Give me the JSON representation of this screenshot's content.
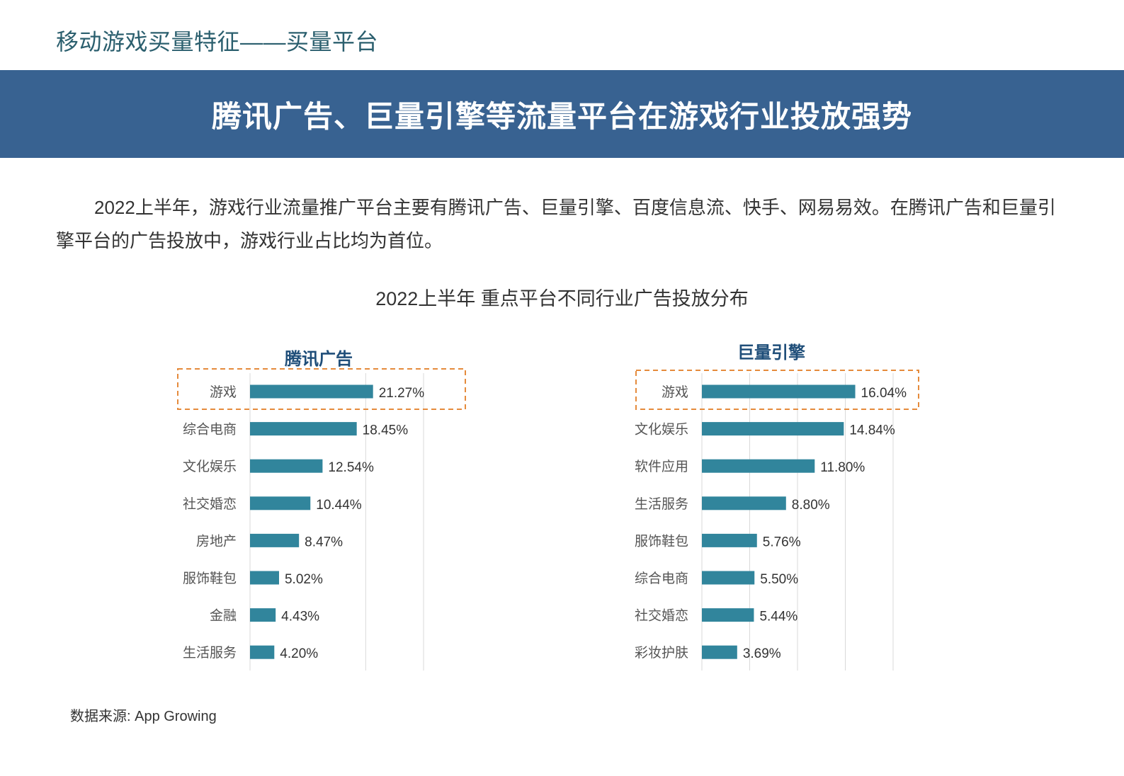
{
  "header": {
    "section_title": "移动游戏买量特征——买量平台",
    "banner_title": "腾讯广告、巨量引擎等流量平台在游戏行业投放强势"
  },
  "intro": {
    "text": "2022上半年，游戏行业流量推广平台主要有腾讯广告、巨量引擎、百度信息流、快手、网易易效。在腾讯广告和巨量引擎平台的广告投放中，游戏行业占比均为首位。"
  },
  "figure": {
    "title": "2022上半年 重点平台不同行业广告投放分布"
  },
  "source": {
    "text": "数据来源: App Growing"
  },
  "colors": {
    "banner": "#386291",
    "bar": "#31859c",
    "highlight": "#e58b3c",
    "chart_title": "#1f4e79"
  },
  "chart_data": [
    {
      "type": "bar",
      "orientation": "horizontal",
      "title": "腾讯广告",
      "categories": [
        "游戏",
        "综合电商",
        "文化娱乐",
        "社交婚恋",
        "房地产",
        "服饰鞋包",
        "金融",
        "生活服务"
      ],
      "values": [
        21.27,
        18.45,
        12.54,
        10.44,
        8.47,
        5.02,
        4.43,
        4.2
      ],
      "labels": [
        "21.27%",
        "18.45%",
        "12.54%",
        "10.44%",
        "8.47%",
        "5.02%",
        "4.43%",
        "4.20%"
      ],
      "xlim": [
        0,
        30
      ],
      "gridlines": [
        0,
        20,
        30
      ],
      "highlighted_category": "游戏"
    },
    {
      "type": "bar",
      "orientation": "horizontal",
      "title": "巨量引擎",
      "categories": [
        "游戏",
        "文化娱乐",
        "软件应用",
        "生活服务",
        "服饰鞋包",
        "综合电商",
        "社交婚恋",
        "彩妆护肤"
      ],
      "values": [
        16.04,
        14.84,
        11.8,
        8.8,
        5.76,
        5.5,
        5.44,
        3.69
      ],
      "labels": [
        "16.04%",
        "14.84%",
        "11.80%",
        "8.80%",
        "5.76%",
        "5.50%",
        "5.44%",
        "3.69%"
      ],
      "xlim": [
        0,
        20
      ],
      "gridlines": [
        0,
        5,
        10,
        15,
        20
      ],
      "highlighted_category": "游戏"
    }
  ]
}
